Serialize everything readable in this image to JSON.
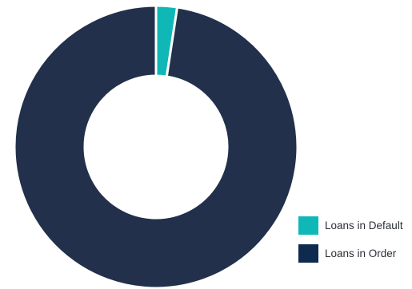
{
  "chart_data": {
    "type": "pie",
    "donut": true,
    "title": "",
    "legend_position": "bottom-right",
    "series": [
      {
        "name": "Loans in Default",
        "value": 2.4,
        "color": "#0fb8b6"
      },
      {
        "name": "Loans in Order",
        "value": 97.6,
        "color": "#22304b"
      }
    ],
    "legend_swatch_colors": [
      "#0fb8b6",
      "#0e2a4e"
    ]
  }
}
